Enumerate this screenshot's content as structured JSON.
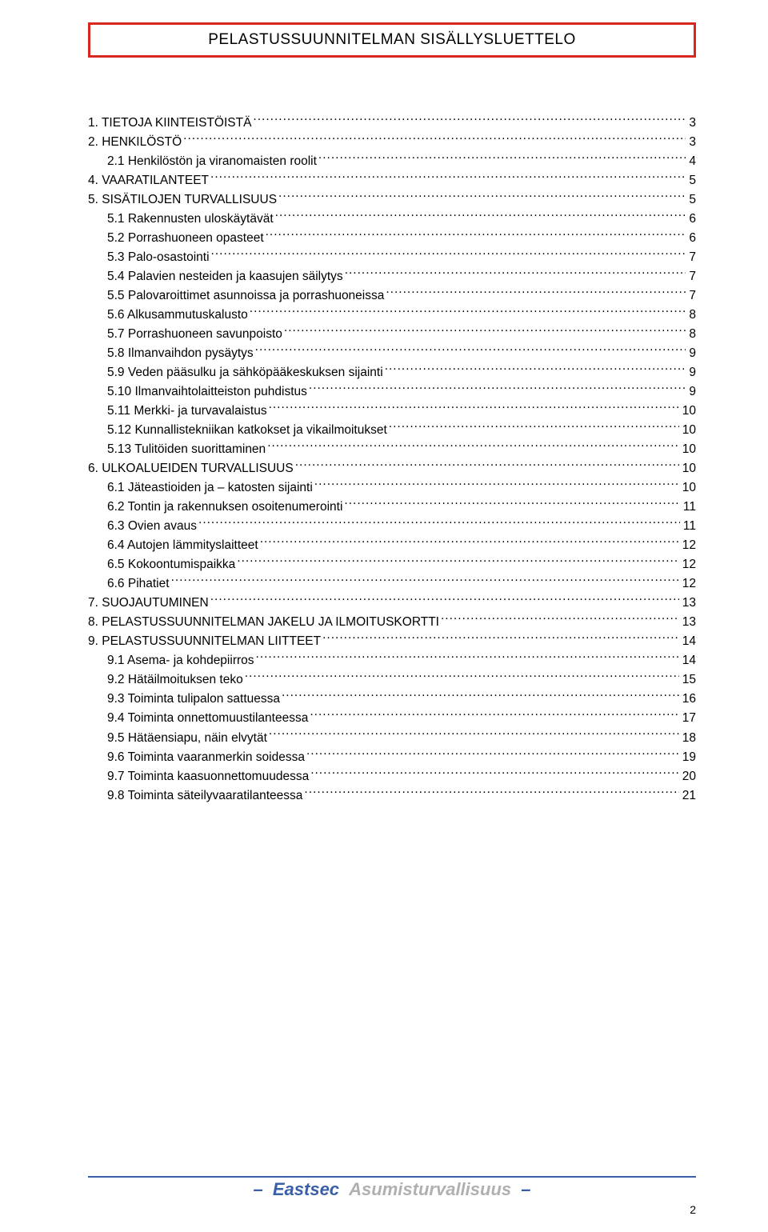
{
  "title": "PELASTUSSUUNNITELMAN SISÄLLYSLUETTELO",
  "toc": [
    {
      "level": 0,
      "label": "1. TIETOJA KIINTEISTÖISTÄ",
      "page": "3"
    },
    {
      "level": 0,
      "label": "2. HENKILÖSTÖ",
      "page": "3"
    },
    {
      "level": 1,
      "label": "2.1 Henkilöstön ja viranomaisten roolit",
      "page": "4"
    },
    {
      "level": 0,
      "label": "4. VAARATILANTEET",
      "page": "5"
    },
    {
      "level": 0,
      "label": "5. SISÄTILOJEN TURVALLISUUS",
      "page": "5"
    },
    {
      "level": 1,
      "label": "5.1 Rakennusten uloskäytävät",
      "page": "6"
    },
    {
      "level": 1,
      "label": "5.2 Porrashuoneen opasteet",
      "page": "6"
    },
    {
      "level": 1,
      "label": "5.3 Palo-osastointi",
      "page": "7"
    },
    {
      "level": 1,
      "label": "5.4 Palavien nesteiden ja kaasujen säilytys",
      "page": "7"
    },
    {
      "level": 1,
      "label": "5.5 Palovaroittimet asunnoissa ja porrashuoneissa",
      "page": "7"
    },
    {
      "level": 1,
      "label": "5.6 Alkusammutuskalusto",
      "page": "8"
    },
    {
      "level": 1,
      "label": "5.7 Porrashuoneen savunpoisto",
      "page": "8"
    },
    {
      "level": 1,
      "label": "5.8 Ilmanvaihdon pysäytys",
      "page": "9"
    },
    {
      "level": 1,
      "label": "5.9 Veden pääsulku ja sähköpääkeskuksen sijainti",
      "page": "9"
    },
    {
      "level": 1,
      "label": "5.10 Ilmanvaihtolaitteiston puhdistus",
      "page": "9"
    },
    {
      "level": 1,
      "label": "5.11 Merkki- ja turvavalaistus",
      "page": "10"
    },
    {
      "level": 1,
      "label": "5.12 Kunnallistekniikan katkokset ja vikailmoitukset",
      "page": "10"
    },
    {
      "level": 1,
      "label": "5.13 Tulitöiden suorittaminen",
      "page": "10"
    },
    {
      "level": 0,
      "label": "6. ULKOALUEIDEN TURVALLISUUS",
      "page": "10"
    },
    {
      "level": 1,
      "label": "6.1 Jäteastioiden ja – katosten sijainti",
      "page": "10"
    },
    {
      "level": 1,
      "label": "6.2 Tontin ja rakennuksen osoitenumerointi",
      "page": "11"
    },
    {
      "level": 1,
      "label": "6.3 Ovien avaus",
      "page": "11"
    },
    {
      "level": 1,
      "label": "6.4 Autojen lämmityslaitteet",
      "page": "12"
    },
    {
      "level": 1,
      "label": "6.5 Kokoontumispaikka",
      "page": "12"
    },
    {
      "level": 1,
      "label": "6.6 Pihatiet",
      "page": "12"
    },
    {
      "level": 0,
      "label": "7. SUOJAUTUMINEN",
      "page": "13"
    },
    {
      "level": 0,
      "label": "8. PELASTUSSUUNNITELMAN JAKELU JA ILMOITUSKORTTI",
      "page": "13"
    },
    {
      "level": 0,
      "label": "9. PELASTUSSUUNNITELMAN LIITTEET",
      "page": "14"
    },
    {
      "level": 1,
      "label": "9.1 Asema- ja kohdepiirros",
      "page": "14"
    },
    {
      "level": 1,
      "label": "9.2 Hätäilmoituksen teko",
      "page": "15"
    },
    {
      "level": 1,
      "label": "9.3 Toiminta tulipalon sattuessa",
      "page": "16"
    },
    {
      "level": 1,
      "label": "9.4 Toiminta onnettomuustilanteessa",
      "page": "17"
    },
    {
      "level": 1,
      "label": "9.5 Hätäensiapu, näin elvytät",
      "page": "18"
    },
    {
      "level": 1,
      "label": "9.6 Toiminta vaaranmerkin soidessa",
      "page": "19"
    },
    {
      "level": 1,
      "label": "9.7 Toiminta kaasuonnettomuudessa",
      "page": "20"
    },
    {
      "level": 1,
      "label": "9.8 Toiminta säteilyvaaratilanteessa",
      "page": "21"
    }
  ],
  "footer": {
    "brand1": "Eastsec",
    "brand2": "Asumisturvallisuus",
    "dash": "–"
  },
  "page_number": "2",
  "colors": {
    "title_border": "#d6281f",
    "footer_line": "#3a5fa8",
    "brand1_color": "#3a5fa8",
    "brand2_color": "#b0b0b0"
  }
}
